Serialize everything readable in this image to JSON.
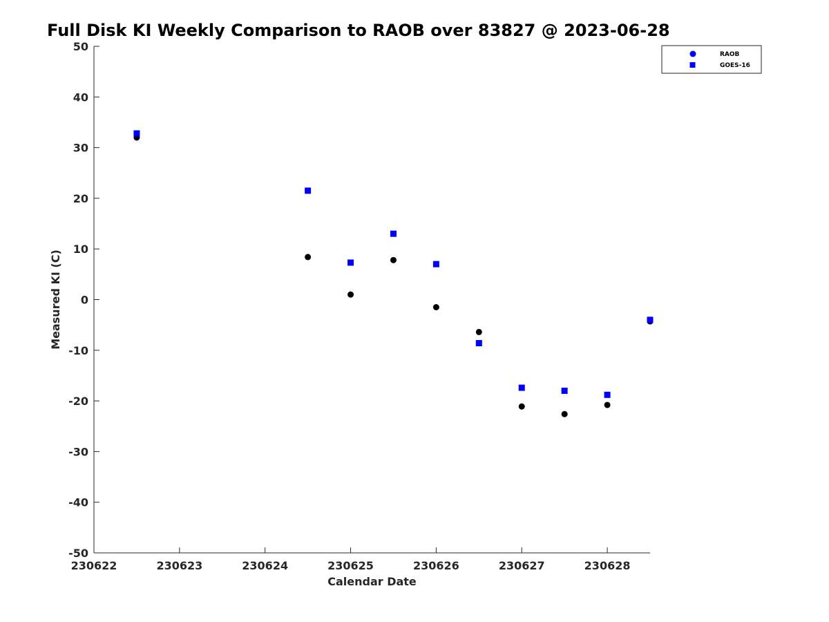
{
  "chart_data": {
    "type": "scatter",
    "title": "Full Disk KI Weekly Comparison to RAOB over 83827 @ 2023-06-28",
    "xlabel": "Calendar Date",
    "ylabel": "Measured KI (C)",
    "xlim": [
      "2023-06-22",
      "2023-06-28 12:00"
    ],
    "ylim": [
      -50,
      50
    ],
    "x_tick_labels": [
      "230622",
      "230623",
      "230624",
      "230625",
      "230626",
      "230627",
      "230628"
    ],
    "y_ticks": [
      -50,
      -40,
      -30,
      -20,
      -10,
      0,
      10,
      20,
      30,
      40,
      50
    ],
    "grid": false,
    "legend_position": "top-right",
    "series": [
      {
        "name": "RAOB",
        "marker": "circle",
        "color": "#000000",
        "legend_color": "#0000ff",
        "points": [
          {
            "x": "2023-06-22 12:00",
            "y": 32.0
          },
          {
            "x": "2023-06-24 12:00",
            "y": 8.4
          },
          {
            "x": "2023-06-25 00:00",
            "y": 1.0
          },
          {
            "x": "2023-06-25 12:00",
            "y": 7.8
          },
          {
            "x": "2023-06-26 00:00",
            "y": -1.5
          },
          {
            "x": "2023-06-26 12:00",
            "y": -6.4
          },
          {
            "x": "2023-06-27 00:00",
            "y": -21.1
          },
          {
            "x": "2023-06-27 12:00",
            "y": -22.6
          },
          {
            "x": "2023-06-28 00:00",
            "y": -20.8
          },
          {
            "x": "2023-06-28 12:00",
            "y": -4.3
          }
        ]
      },
      {
        "name": "GOES-16",
        "marker": "square",
        "color": "#0000ff",
        "points": [
          {
            "x": "2023-06-22 12:00",
            "y": 32.8
          },
          {
            "x": "2023-06-24 12:00",
            "y": 21.5
          },
          {
            "x": "2023-06-25 00:00",
            "y": 7.3
          },
          {
            "x": "2023-06-25 12:00",
            "y": 13.0
          },
          {
            "x": "2023-06-26 00:00",
            "y": 7.0
          },
          {
            "x": "2023-06-26 12:00",
            "y": -8.6
          },
          {
            "x": "2023-06-27 00:00",
            "y": -17.4
          },
          {
            "x": "2023-06-27 12:00",
            "y": -18.0
          },
          {
            "x": "2023-06-28 00:00",
            "y": -18.8
          },
          {
            "x": "2023-06-28 12:00",
            "y": -4.0
          }
        ]
      }
    ]
  }
}
